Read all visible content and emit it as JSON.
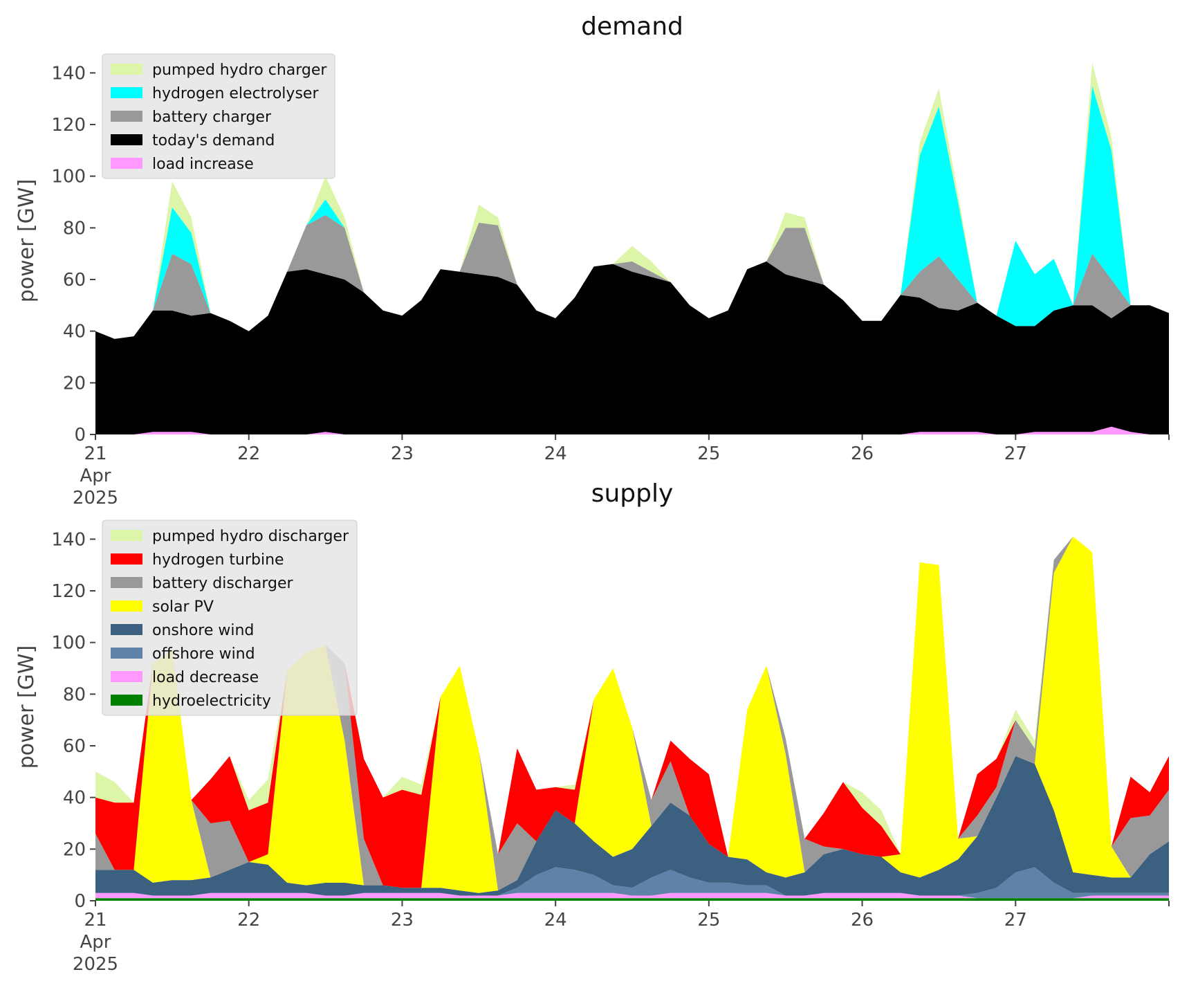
{
  "chart_data": [
    {
      "type": "area",
      "title": "demand",
      "ylabel": "power [GW]",
      "xlabel": "",
      "ylim": [
        0,
        150
      ],
      "yticks": [
        "0",
        "20",
        "40",
        "60",
        "80",
        "100",
        "120",
        "140"
      ],
      "xlim": [
        0,
        7
      ],
      "xticks": [
        {
          "x": 0,
          "lines": [
            "21",
            "Apr",
            "2025"
          ]
        },
        {
          "x": 1,
          "lines": [
            "22"
          ]
        },
        {
          "x": 2,
          "lines": [
            "23"
          ]
        },
        {
          "x": 3,
          "lines": [
            "24"
          ]
        },
        {
          "x": 4,
          "lines": [
            "25"
          ]
        },
        {
          "x": 5,
          "lines": [
            "26"
          ]
        },
        {
          "x": 6,
          "lines": [
            "27"
          ]
        }
      ],
      "x_unit": "days from 21 Apr 2025",
      "x": [
        0,
        0.125,
        0.25,
        0.375,
        0.5,
        0.625,
        0.75,
        0.875,
        1,
        1.125,
        1.25,
        1.375,
        1.5,
        1.625,
        1.75,
        1.875,
        2,
        2.125,
        2.25,
        2.375,
        2.5,
        2.625,
        2.75,
        2.875,
        3,
        3.125,
        3.25,
        3.375,
        3.5,
        3.625,
        3.75,
        3.875,
        4,
        4.125,
        4.25,
        4.375,
        4.5,
        4.625,
        4.75,
        4.875,
        5,
        5.125,
        5.25,
        5.375,
        5.5,
        5.625,
        5.75,
        5.875,
        6,
        6.125,
        6.25,
        6.375,
        6.5,
        6.625,
        6.75,
        6.875,
        7
      ],
      "legend": {
        "position": "upper-left",
        "order": [
          "pumped hydro charger",
          "hydrogen electrolyser",
          "battery charger",
          "today's demand",
          "load increase"
        ]
      },
      "stack_order": [
        "load increase",
        "today's demand",
        "battery charger",
        "hydrogen electrolyser",
        "pumped hydro charger"
      ],
      "series": [
        {
          "name": "load increase",
          "color": "#ff99ff",
          "overlay": true,
          "values": [
            0,
            0,
            0,
            1,
            1,
            1,
            0,
            0,
            0,
            0,
            0,
            0,
            1,
            0,
            0,
            0,
            0,
            0,
            0,
            0,
            0,
            0,
            0,
            0,
            0,
            0,
            0,
            0,
            0,
            0,
            0,
            0,
            0,
            0,
            0,
            0,
            0,
            0,
            0,
            0,
            0,
            0,
            0,
            1,
            1,
            1,
            1,
            0,
            0,
            1,
            1,
            1,
            1,
            3,
            1,
            0,
            0
          ]
        },
        {
          "name": "today's demand",
          "color": "#000000",
          "values": [
            40,
            37,
            38,
            48,
            48,
            46,
            47,
            44,
            40,
            46,
            63,
            64,
            62,
            60,
            55,
            48,
            46,
            52,
            64,
            63,
            62,
            61,
            58,
            48,
            45,
            53,
            65,
            66,
            63,
            61,
            59,
            50,
            45,
            48,
            64,
            67,
            62,
            60,
            58,
            52,
            44,
            44,
            54,
            53,
            49,
            48,
            51,
            46,
            42,
            42,
            48,
            50,
            50,
            45,
            50,
            50,
            47
          ]
        },
        {
          "name": "battery charger",
          "color": "#999999",
          "values": [
            0,
            0,
            0,
            0,
            22,
            20,
            0,
            0,
            0,
            0,
            0,
            17,
            23,
            20,
            0,
            0,
            0,
            0,
            0,
            0,
            20,
            20,
            0,
            0,
            0,
            0,
            0,
            0,
            4,
            2,
            0,
            0,
            0,
            0,
            0,
            0,
            18,
            20,
            0,
            0,
            0,
            0,
            0,
            10,
            20,
            12,
            0,
            0,
            0,
            0,
            0,
            0,
            20,
            15,
            0,
            0,
            0
          ]
        },
        {
          "name": "hydrogen electrolyser",
          "color": "#00ffff",
          "values": [
            0,
            0,
            0,
            0,
            18,
            12,
            0,
            0,
            0,
            0,
            0,
            0,
            6,
            0,
            0,
            0,
            0,
            0,
            0,
            0,
            0,
            0,
            0,
            0,
            0,
            0,
            0,
            0,
            0,
            0,
            0,
            0,
            0,
            0,
            0,
            0,
            0,
            0,
            0,
            0,
            0,
            0,
            0,
            45,
            58,
            30,
            0,
            0,
            33,
            20,
            20,
            0,
            65,
            50,
            0,
            0,
            0
          ]
        },
        {
          "name": "pumped hydro charger",
          "color": "#dcf5a8",
          "values": [
            0,
            0,
            0,
            0,
            10,
            6,
            0,
            0,
            0,
            0,
            0,
            0,
            9,
            4,
            0,
            0,
            0,
            0,
            0,
            0,
            7,
            3,
            0,
            0,
            0,
            0,
            0,
            0,
            6,
            4,
            0,
            0,
            0,
            0,
            0,
            0,
            6,
            4,
            0,
            0,
            0,
            0,
            0,
            5,
            7,
            3,
            0,
            0,
            0,
            0,
            0,
            0,
            9,
            5,
            0,
            0,
            0
          ]
        }
      ]
    },
    {
      "type": "area",
      "title": "supply",
      "ylabel": "power [GW]",
      "xlabel": "",
      "ylim": [
        0,
        150
      ],
      "yticks": [
        "0",
        "20",
        "40",
        "60",
        "80",
        "100",
        "120",
        "140"
      ],
      "xlim": [
        0,
        7
      ],
      "xticks": [
        {
          "x": 0,
          "lines": [
            "21",
            "Apr",
            "2025"
          ]
        },
        {
          "x": 1,
          "lines": [
            "22"
          ]
        },
        {
          "x": 2,
          "lines": [
            "23"
          ]
        },
        {
          "x": 3,
          "lines": [
            "24"
          ]
        },
        {
          "x": 4,
          "lines": [
            "25"
          ]
        },
        {
          "x": 5,
          "lines": [
            "26"
          ]
        },
        {
          "x": 6,
          "lines": [
            "27"
          ]
        }
      ],
      "x_unit": "days from 21 Apr 2025",
      "x": [
        0,
        0.125,
        0.25,
        0.375,
        0.5,
        0.625,
        0.75,
        0.875,
        1,
        1.125,
        1.25,
        1.375,
        1.5,
        1.625,
        1.75,
        1.875,
        2,
        2.125,
        2.25,
        2.375,
        2.5,
        2.625,
        2.75,
        2.875,
        3,
        3.125,
        3.25,
        3.375,
        3.5,
        3.625,
        3.75,
        3.875,
        4,
        4.125,
        4.25,
        4.375,
        4.5,
        4.625,
        4.75,
        4.875,
        5,
        5.125,
        5.25,
        5.375,
        5.5,
        5.625,
        5.75,
        5.875,
        6,
        6.125,
        6.25,
        6.375,
        6.5,
        6.625,
        6.75,
        6.875,
        7
      ],
      "legend": {
        "position": "upper-left",
        "order": [
          "pumped hydro discharger",
          "hydrogen turbine",
          "battery discharger",
          "solar PV",
          "onshore wind",
          "offshore wind",
          "load decrease",
          "hydroelectricity"
        ]
      },
      "stack_order": [
        "hydroelectricity",
        "load decrease",
        "offshore wind",
        "onshore wind",
        "solar PV",
        "battery discharger",
        "hydrogen turbine",
        "pumped hydro discharger"
      ],
      "series": [
        {
          "name": "hydroelectricity",
          "color": "#008000",
          "values": [
            1,
            1,
            1,
            1,
            1,
            1,
            1,
            1,
            1,
            1,
            1,
            1,
            1,
            1,
            1,
            1,
            1,
            1,
            1,
            1,
            1,
            1,
            1,
            1,
            1,
            1,
            1,
            1,
            1,
            1,
            1,
            1,
            1,
            1,
            1,
            1,
            1,
            1,
            1,
            1,
            1,
            1,
            1,
            1,
            1,
            1,
            1,
            1,
            1,
            1,
            1,
            1,
            1,
            1,
            1,
            1,
            1
          ]
        },
        {
          "name": "load decrease",
          "color": "#ff99ff",
          "values": [
            2,
            2,
            2,
            1,
            1,
            1,
            2,
            2,
            2,
            2,
            2,
            2,
            1,
            1,
            2,
            2,
            2,
            2,
            2,
            1,
            1,
            1,
            2,
            2,
            2,
            2,
            2,
            2,
            1,
            1,
            2,
            2,
            2,
            2,
            2,
            2,
            1,
            1,
            2,
            2,
            2,
            2,
            2,
            1,
            1,
            1,
            0,
            0,
            0,
            0,
            0,
            0,
            1,
            1,
            1,
            1,
            1
          ]
        },
        {
          "name": "offshore wind",
          "color": "#5f82a8",
          "values": [
            0,
            0,
            0,
            0,
            0,
            0,
            0,
            0,
            0,
            0,
            0,
            0,
            0,
            0,
            0,
            0,
            0,
            0,
            0,
            0,
            0,
            0,
            2,
            7,
            10,
            9,
            7,
            3,
            3,
            7,
            9,
            6,
            4,
            4,
            3,
            3,
            0,
            0,
            0,
            0,
            0,
            0,
            0,
            0,
            0,
            0,
            2,
            4,
            10,
            12,
            6,
            2,
            1,
            1,
            1,
            1,
            1
          ]
        },
        {
          "name": "onshore wind",
          "color": "#3c6080",
          "values": [
            9,
            9,
            9,
            5,
            6,
            6,
            6,
            9,
            12,
            11,
            4,
            3,
            5,
            5,
            3,
            3,
            2,
            2,
            2,
            2,
            1,
            2,
            3,
            13,
            22,
            18,
            13,
            11,
            15,
            20,
            26,
            24,
            15,
            10,
            10,
            5,
            7,
            9,
            15,
            17,
            15,
            14,
            8,
            7,
            10,
            14,
            22,
            35,
            45,
            40,
            28,
            8,
            7,
            6,
            6,
            15,
            20
          ]
        },
        {
          "name": "solar PV",
          "color": "#ffff00",
          "values": [
            0,
            0,
            0,
            85,
            89,
            31,
            0,
            0,
            0,
            4,
            82,
            90,
            92,
            55,
            0,
            0,
            0,
            0,
            74,
            87,
            55,
            0,
            0,
            0,
            0,
            0,
            55,
            73,
            47,
            0,
            0,
            0,
            0,
            0,
            58,
            80,
            48,
            0,
            0,
            0,
            0,
            0,
            7,
            122,
            118,
            8,
            0,
            0,
            0,
            0,
            92,
            130,
            125,
            12,
            0,
            0,
            0
          ]
        },
        {
          "name": "battery discharger",
          "color": "#999999",
          "values": [
            14,
            0,
            0,
            0,
            0,
            0,
            21,
            19,
            0,
            0,
            0,
            0,
            0,
            30,
            18,
            0,
            0,
            0,
            0,
            0,
            0,
            14,
            22,
            0,
            0,
            0,
            0,
            0,
            0,
            10,
            16,
            0,
            0,
            0,
            0,
            0,
            6,
            13,
            3,
            0,
            0,
            0,
            0,
            0,
            0,
            0,
            8,
            4,
            14,
            6,
            5,
            0,
            0,
            0,
            23,
            15,
            20
          ]
        },
        {
          "name": "hydrogen turbine",
          "color": "#ff0000",
          "values": [
            14,
            26,
            26,
            0,
            0,
            0,
            17,
            25,
            20,
            20,
            0,
            0,
            0,
            0,
            31,
            34,
            38,
            36,
            0,
            0,
            0,
            0,
            29,
            20,
            9,
            13,
            0,
            0,
            0,
            0,
            8,
            22,
            27,
            0,
            0,
            0,
            0,
            0,
            13,
            26,
            18,
            12,
            0,
            0,
            0,
            0,
            16,
            11,
            0,
            0,
            0,
            0,
            0,
            0,
            16,
            9,
            13
          ]
        },
        {
          "name": "pumped hydro discharger",
          "color": "#dcf5a8",
          "values": [
            10,
            8,
            0,
            0,
            0,
            0,
            0,
            0,
            4,
            9,
            0,
            0,
            0,
            0,
            0,
            0,
            5,
            4,
            0,
            0,
            0,
            0,
            0,
            0,
            0,
            2,
            0,
            0,
            0,
            0,
            0,
            0,
            0,
            0,
            0,
            0,
            0,
            0,
            0,
            0,
            6,
            6,
            0,
            0,
            0,
            0,
            0,
            0,
            4,
            3,
            0,
            0,
            0,
            0,
            0,
            0,
            0
          ]
        }
      ]
    }
  ]
}
